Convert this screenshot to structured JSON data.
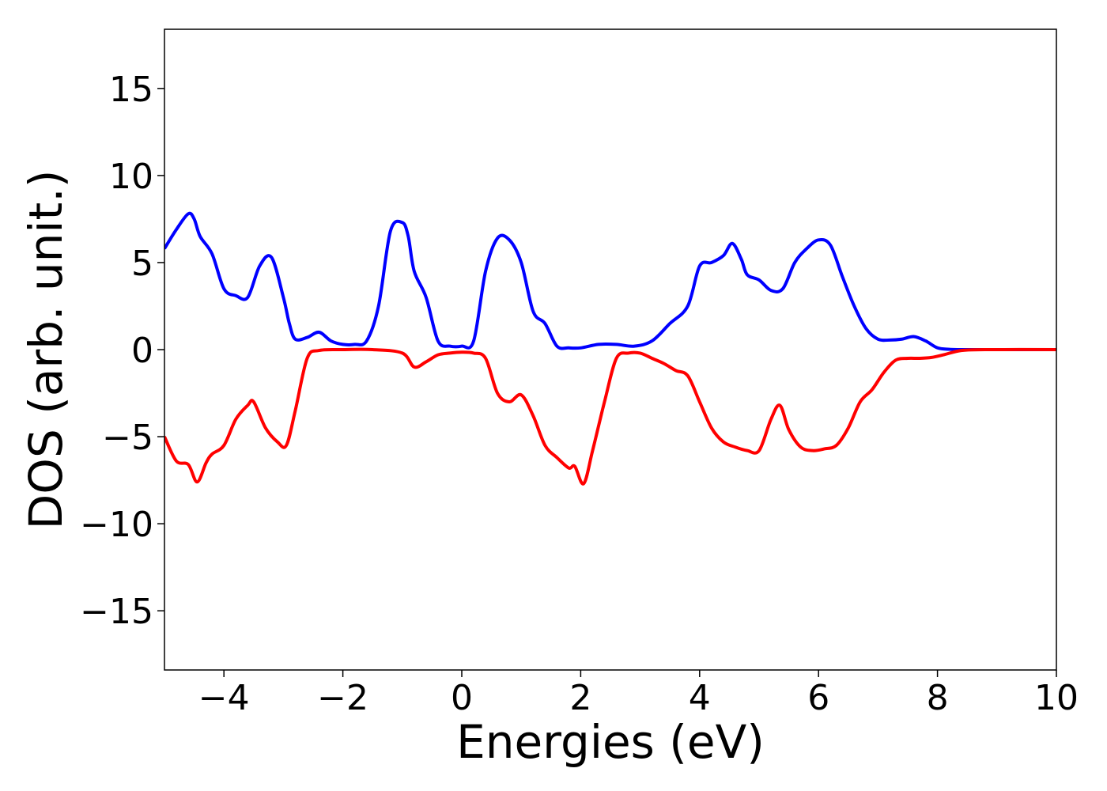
{
  "chart_data": {
    "type": "line",
    "title": "",
    "xlabel": "Energies (eV)",
    "ylabel": "DOS (arb. unit.)",
    "xlim": [
      -5,
      10
    ],
    "ylim": [
      -18.4,
      18.4
    ],
    "xticks": [
      -4,
      -2,
      0,
      2,
      4,
      6,
      8,
      10
    ],
    "xtick_labels": [
      "−4",
      "−2",
      "0",
      "2",
      "4",
      "6",
      "8",
      "10"
    ],
    "yticks": [
      -15,
      -10,
      -5,
      0,
      5,
      10,
      15
    ],
    "ytick_labels": [
      "−15",
      "−10",
      "−5",
      "0",
      "5",
      "10",
      "15"
    ],
    "grid": false,
    "legend": "none",
    "series": [
      {
        "color": "#0000ff",
        "x": [
          -5.0,
          -4.8,
          -4.6,
          -4.5,
          -4.4,
          -4.2,
          -4.0,
          -3.8,
          -3.6,
          -3.4,
          -3.2,
          -3.0,
          -2.9,
          -2.8,
          -2.6,
          -2.4,
          -2.2,
          -2.0,
          -1.8,
          -1.6,
          -1.4,
          -1.2,
          -1.0,
          -0.9,
          -0.8,
          -0.6,
          -0.4,
          -0.2,
          0.0,
          0.2,
          0.4,
          0.6,
          0.8,
          1.0,
          1.2,
          1.4,
          1.6,
          1.8,
          2.0,
          2.3,
          2.6,
          2.9,
          3.2,
          3.5,
          3.8,
          4.0,
          4.2,
          4.4,
          4.55,
          4.7,
          4.8,
          5.0,
          5.2,
          5.4,
          5.6,
          5.8,
          6.0,
          6.2,
          6.4,
          6.6,
          6.8,
          7.0,
          7.2,
          7.4,
          7.6,
          7.8,
          8.0,
          8.2,
          8.5,
          9.0,
          10.0
        ],
        "y": [
          5.8,
          6.9,
          7.8,
          7.5,
          6.5,
          5.5,
          3.5,
          3.1,
          3.0,
          4.8,
          5.3,
          3.0,
          1.5,
          0.6,
          0.7,
          1.0,
          0.5,
          0.3,
          0.3,
          0.5,
          2.5,
          6.8,
          7.3,
          6.5,
          4.5,
          3.0,
          0.5,
          0.2,
          0.2,
          0.5,
          4.5,
          6.4,
          6.3,
          5.0,
          2.2,
          1.5,
          0.2,
          0.1,
          0.1,
          0.3,
          0.3,
          0.2,
          0.5,
          1.5,
          2.5,
          4.8,
          5.0,
          5.4,
          6.1,
          5.2,
          4.3,
          4.0,
          3.4,
          3.5,
          5.0,
          5.8,
          6.3,
          6.0,
          4.2,
          2.5,
          1.2,
          0.6,
          0.55,
          0.6,
          0.75,
          0.5,
          0.1,
          0.02,
          0.0,
          0.0,
          0.0
        ]
      },
      {
        "color": "#ff0000",
        "x": [
          -5.0,
          -4.8,
          -4.6,
          -4.45,
          -4.3,
          -4.2,
          -4.0,
          -3.8,
          -3.6,
          -3.5,
          -3.3,
          -3.1,
          -2.95,
          -2.8,
          -2.6,
          -2.4,
          -2.0,
          -1.5,
          -1.0,
          -0.8,
          -0.6,
          -0.4,
          -0.2,
          0.0,
          0.2,
          0.4,
          0.6,
          0.8,
          1.0,
          1.2,
          1.4,
          1.6,
          1.8,
          1.9,
          2.05,
          2.2,
          2.4,
          2.6,
          2.8,
          3.0,
          3.2,
          3.4,
          3.6,
          3.8,
          4.0,
          4.2,
          4.4,
          4.6,
          4.8,
          5.0,
          5.2,
          5.35,
          5.5,
          5.7,
          5.9,
          6.1,
          6.3,
          6.5,
          6.7,
          6.9,
          7.1,
          7.3,
          7.5,
          7.7,
          7.9,
          8.1,
          8.4,
          8.8,
          10.0
        ],
        "y": [
          -5.0,
          -6.4,
          -6.6,
          -7.6,
          -6.5,
          -6.0,
          -5.5,
          -4.0,
          -3.2,
          -3.0,
          -4.5,
          -5.3,
          -5.5,
          -3.5,
          -0.5,
          -0.05,
          0.0,
          0.0,
          -0.2,
          -1.0,
          -0.7,
          -0.3,
          -0.2,
          -0.15,
          -0.2,
          -0.5,
          -2.5,
          -3.0,
          -2.6,
          -3.8,
          -5.5,
          -6.2,
          -6.8,
          -6.7,
          -7.7,
          -5.8,
          -3.0,
          -0.5,
          -0.2,
          -0.2,
          -0.5,
          -0.8,
          -1.2,
          -1.5,
          -3.0,
          -4.5,
          -5.3,
          -5.6,
          -5.8,
          -5.8,
          -4.0,
          -3.2,
          -4.6,
          -5.6,
          -5.8,
          -5.7,
          -5.5,
          -4.5,
          -3.0,
          -2.3,
          -1.3,
          -0.6,
          -0.5,
          -0.5,
          -0.45,
          -0.3,
          -0.05,
          0.0,
          0.0
        ]
      }
    ]
  }
}
